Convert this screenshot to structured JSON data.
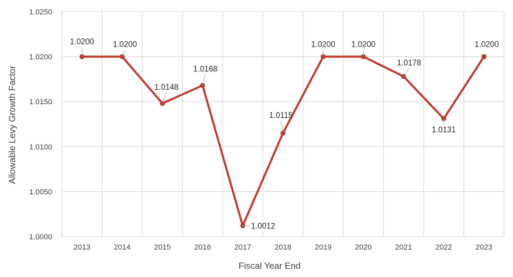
{
  "chart_data": {
    "type": "line",
    "title": "",
    "xlabel": "Fiscal Year End",
    "ylabel": "Allowable Levy Growth Factor",
    "categories": [
      "2013",
      "2014",
      "2015",
      "2016",
      "2017",
      "2018",
      "2019",
      "2020",
      "2021",
      "2022",
      "2023"
    ],
    "series": [
      {
        "values": [
          1.02,
          1.02,
          1.0148,
          1.0168,
          1.0012,
          1.0115,
          1.02,
          1.02,
          1.0178,
          1.0131,
          1.02
        ],
        "color": "#c0392b"
      }
    ],
    "data_labels": [
      "1.0200",
      "1.0200",
      "1.0148",
      "1.0168",
      "1.0012",
      "1.0115",
      "1.0200",
      "1.0200",
      "1.0178",
      "1.0131",
      "1.0200"
    ],
    "y_ticks": [
      "1.0000",
      "1.0050",
      "1.0100",
      "1.0150",
      "1.0200",
      "1.0250"
    ],
    "ylim": [
      1.0,
      1.025
    ],
    "grid": true,
    "legend": "none"
  }
}
